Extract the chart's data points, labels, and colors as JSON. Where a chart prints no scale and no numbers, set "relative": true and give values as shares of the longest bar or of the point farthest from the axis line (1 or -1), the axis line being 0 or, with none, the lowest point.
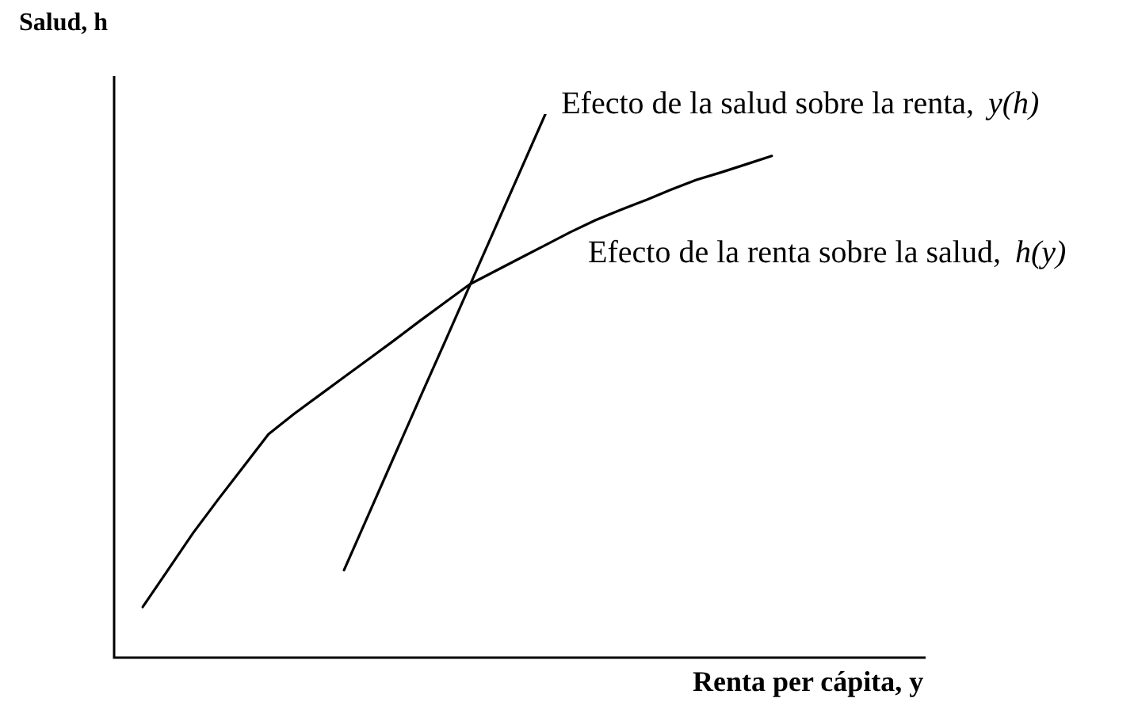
{
  "chart_data": {
    "type": "line",
    "relative": true,
    "xlabel": "Renta per cápita, y",
    "ylabel": "Salud, h",
    "line_style": "solid",
    "marker": "none",
    "legend": false,
    "categories": [
      null,
      null,
      null,
      null,
      null,
      null,
      null,
      null,
      null,
      null,
      null,
      null,
      null,
      null,
      null,
      null,
      null,
      null,
      null,
      null,
      null,
      null,
      null,
      null,
      null,
      null
    ],
    "series": [
      {
        "name": "Efecto de la salud sobre la renta, y(h)",
        "color": "#000000",
        "values": [
          null,
          null,
          null,
          null,
          null,
          null,
          null,
          null,
          0.161,
          0.266,
          0.371,
          0.476,
          0.58,
          0.685,
          0.79,
          0.895,
          1,
          null,
          null,
          null,
          null,
          null,
          null,
          null,
          null,
          null
        ]
      },
      {
        "name": "Efecto de la renta sobre la salud, h(y)",
        "color": "#000000",
        "values": [
          0.093,
          0.161,
          0.229,
          0.291,
          0.351,
          0.411,
          0.448,
          0.482,
          0.516,
          0.55,
          0.584,
          0.619,
          0.653,
          0.687,
          0.711,
          0.735,
          0.759,
          0.783,
          0.805,
          0.824,
          0.842,
          0.861,
          0.879,
          0.893,
          0.908,
          0.923
        ]
      }
    ]
  }
}
